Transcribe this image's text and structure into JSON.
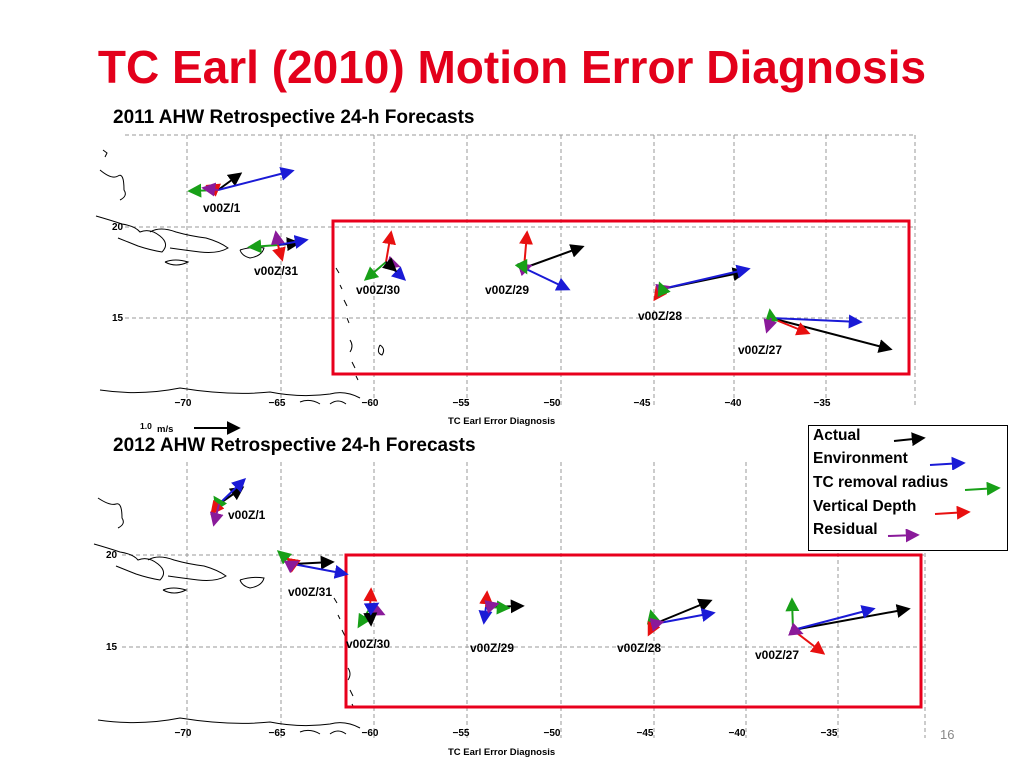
{
  "title": "TC Earl (2010) Motion Error Diagnosis",
  "page_number": "16",
  "colors": {
    "title": "#e3001b",
    "actual": "#000000",
    "environment": "#1a1ad6",
    "tc_removal_radius": "#18a018",
    "vertical_depth": "#e81010",
    "residual": "#8a1a9a",
    "highlight_box": "#e8001c",
    "grid": "#9a9a9a"
  },
  "legend": {
    "items": [
      {
        "key": "actual",
        "label": "Actual"
      },
      {
        "key": "environment",
        "label": "Environment"
      },
      {
        "key": "tc_removal_radius",
        "label": "TC removal radius"
      },
      {
        "key": "vertical_depth",
        "label": "Vertical Depth"
      },
      {
        "key": "residual",
        "label": "Residual"
      }
    ]
  },
  "panels": [
    {
      "id": "top",
      "title": "2011 AHW Retrospective 24-h Forecasts",
      "map_caption": "TC Earl Error Diagnosis",
      "scale_label_value": "1.0",
      "scale_label_unit": "m/s",
      "lon_ticks": [
        "−70",
        "−65",
        "−60",
        "−55",
        "−50",
        "−45",
        "−40",
        "−35"
      ],
      "lat_ticks": [
        "20",
        "15"
      ],
      "forecasts": [
        {
          "label": "v00Z/1"
        },
        {
          "label": "v00Z/31"
        },
        {
          "label": "v00Z/30"
        },
        {
          "label": "v00Z/29"
        },
        {
          "label": "v00Z/28"
        },
        {
          "label": "v00Z/27"
        }
      ]
    },
    {
      "id": "bottom",
      "title": "2012 AHW Retrospective 24-h Forecasts",
      "map_caption": "TC Earl Error Diagnosis",
      "lon_ticks": [
        "−70",
        "−65",
        "−60",
        "−55",
        "−50",
        "−45",
        "−40",
        "−35"
      ],
      "lat_ticks": [
        "20",
        "15"
      ],
      "forecasts": [
        {
          "label": "v00Z/1"
        },
        {
          "label": "v00Z/31"
        },
        {
          "label": "v00Z/30"
        },
        {
          "label": "v00Z/29"
        },
        {
          "label": "v00Z/28"
        },
        {
          "label": "v00Z/27"
        }
      ]
    }
  ]
}
